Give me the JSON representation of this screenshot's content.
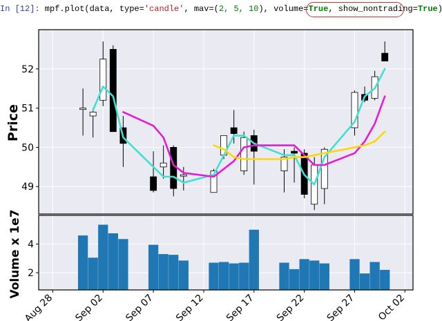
{
  "code": {
    "prompt": "In [12]:",
    "call_start": " mpf.plot(data, type=",
    "type_value": "'candle'",
    "mav_label": ", mav=(",
    "mav_values": "2, 5, 10",
    "volume_label": "), volume=",
    "volume_value": "True",
    "sep": ", ",
    "nontrading_label": "show_nontrading=",
    "nontrading_value": "True",
    "call_end": ")"
  },
  "chart_data": {
    "type": "candlestick",
    "xlabel": "",
    "x_tick_labels": [
      "Aug 28",
      "Sep 02",
      "Sep 07",
      "Sep 12",
      "Sep 17",
      "Sep 22",
      "Sep 27",
      "Oct 02"
    ],
    "x_tick_days": [
      0,
      5,
      10,
      15,
      20,
      25,
      30,
      35
    ],
    "xlim_days": [
      -1.4,
      35.8
    ],
    "price_panel": {
      "ylabel": "Price",
      "ylim": [
        48.3,
        53.0
      ],
      "yticks": [
        49,
        50,
        51,
        52
      ],
      "candles": [
        {
          "day": 3,
          "open": 50.97,
          "high": 51.5,
          "low": 50.3,
          "close": 51.0
        },
        {
          "day": 4,
          "open": 50.8,
          "high": 51.0,
          "low": 50.25,
          "close": 50.9
        },
        {
          "day": 5,
          "open": 51.2,
          "high": 52.7,
          "low": 51.05,
          "close": 52.25
        },
        {
          "day": 6,
          "open": 52.5,
          "high": 52.6,
          "low": 50.4,
          "close": 50.4
        },
        {
          "day": 7,
          "open": 50.5,
          "high": 50.8,
          "low": 49.5,
          "close": 50.1
        },
        {
          "day": 10,
          "open": 49.25,
          "high": 49.9,
          "low": 48.85,
          "close": 48.9
        },
        {
          "day": 11,
          "open": 49.5,
          "high": 50.05,
          "low": 49.2,
          "close": 49.6
        },
        {
          "day": 12,
          "open": 50.0,
          "high": 50.05,
          "low": 48.75,
          "close": 48.95
        },
        {
          "day": 13,
          "open": 49.3,
          "high": 49.5,
          "low": 48.9,
          "close": 49.3
        },
        {
          "day": 16,
          "open": 48.85,
          "high": 49.45,
          "low": 48.85,
          "close": 49.4
        },
        {
          "day": 17,
          "open": 49.8,
          "high": 50.3,
          "low": 49.7,
          "close": 50.3
        },
        {
          "day": 18,
          "open": 50.5,
          "high": 50.95,
          "low": 50.1,
          "close": 50.35
        },
        {
          "day": 19,
          "open": 49.4,
          "high": 50.4,
          "low": 49.3,
          "close": 50.25
        },
        {
          "day": 20,
          "open": 50.3,
          "high": 50.45,
          "low": 49.05,
          "close": 49.9
        },
        {
          "day": 23,
          "open": 49.4,
          "high": 49.95,
          "low": 48.85,
          "close": 49.75
        },
        {
          "day": 24,
          "open": 49.9,
          "high": 50.0,
          "low": 49.1,
          "close": 49.85
        },
        {
          "day": 25,
          "open": 49.85,
          "high": 49.95,
          "low": 48.7,
          "close": 48.8
        },
        {
          "day": 26,
          "open": 48.55,
          "high": 49.75,
          "low": 48.4,
          "close": 49.55
        },
        {
          "day": 27,
          "open": 48.95,
          "high": 50.0,
          "low": 48.55,
          "close": 49.95
        },
        {
          "day": 30,
          "open": 50.5,
          "high": 51.45,
          "low": 50.3,
          "close": 51.4
        },
        {
          "day": 31,
          "open": 51.35,
          "high": 51.55,
          "low": 51.15,
          "close": 51.2
        },
        {
          "day": 32,
          "open": 51.25,
          "high": 51.95,
          "low": 51.2,
          "close": 51.8
        },
        {
          "day": 33,
          "open": 52.4,
          "high": 52.7,
          "low": 52.2,
          "close": 52.2
        }
      ],
      "moving_averages": [
        {
          "name": "mav 2",
          "color": "#40e0d0",
          "points": [
            [
              4,
              50.95
            ],
            [
              5,
              51.55
            ],
            [
              6,
              51.3
            ],
            [
              7,
              50.25
            ],
            [
              10,
              49.5
            ],
            [
              11,
              49.25
            ],
            [
              12,
              49.25
            ],
            [
              13,
              49.1
            ],
            [
              16,
              49.3
            ],
            [
              17,
              49.8
            ],
            [
              18,
              50.3
            ],
            [
              19,
              50.3
            ],
            [
              20,
              50.1
            ],
            [
              23,
              49.8
            ],
            [
              24,
              49.8
            ],
            [
              25,
              49.3
            ],
            [
              26,
              49.05
            ],
            [
              27,
              49.75
            ],
            [
              30,
              50.65
            ],
            [
              31,
              51.3
            ],
            [
              32,
              51.5
            ],
            [
              33,
              52.0
            ]
          ]
        },
        {
          "name": "mav 5",
          "color": "#e619d9",
          "points": [
            [
              7,
              50.9
            ],
            [
              10,
              50.55
            ],
            [
              11,
              50.25
            ],
            [
              12,
              49.55
            ],
            [
              13,
              49.35
            ],
            [
              16,
              49.25
            ],
            [
              17,
              49.45
            ],
            [
              18,
              49.65
            ],
            [
              19,
              50.0
            ],
            [
              20,
              50.05
            ],
            [
              23,
              50.05
            ],
            [
              24,
              50.05
            ],
            [
              25,
              49.8
            ],
            [
              26,
              49.55
            ],
            [
              27,
              49.55
            ],
            [
              30,
              49.85
            ],
            [
              31,
              50.15
            ],
            [
              32,
              50.6
            ],
            [
              33,
              51.3
            ]
          ]
        },
        {
          "name": "mav 10",
          "color": "#ffd700",
          "points": [
            [
              16,
              50.05
            ],
            [
              17,
              49.95
            ],
            [
              18,
              49.75
            ],
            [
              19,
              49.7
            ],
            [
              20,
              49.7
            ],
            [
              23,
              49.7
            ],
            [
              24,
              49.75
            ],
            [
              25,
              49.75
            ],
            [
              26,
              49.8
            ],
            [
              27,
              49.85
            ],
            [
              30,
              50.0
            ],
            [
              31,
              50.05
            ],
            [
              32,
              50.15
            ],
            [
              33,
              50.4
            ]
          ]
        }
      ]
    },
    "volume_panel": {
      "ylabel": "Volume x 1e7",
      "ylim": [
        0.8,
        6.0
      ],
      "yticks": [
        2,
        4
      ],
      "bar_color": "#1f77b4",
      "bars": [
        {
          "day": 3,
          "value": 4.6
        },
        {
          "day": 4,
          "value": 3.05
        },
        {
          "day": 5,
          "value": 5.35
        },
        {
          "day": 6,
          "value": 4.75
        },
        {
          "day": 7,
          "value": 4.35
        },
        {
          "day": 10,
          "value": 3.95
        },
        {
          "day": 11,
          "value": 3.3
        },
        {
          "day": 12,
          "value": 3.25
        },
        {
          "day": 13,
          "value": 2.85
        },
        {
          "day": 16,
          "value": 2.7
        },
        {
          "day": 17,
          "value": 2.75
        },
        {
          "day": 18,
          "value": 2.65
        },
        {
          "day": 19,
          "value": 2.7
        },
        {
          "day": 20,
          "value": 5.0
        },
        {
          "day": 23,
          "value": 2.7
        },
        {
          "day": 24,
          "value": 2.25
        },
        {
          "day": 25,
          "value": 2.95
        },
        {
          "day": 26,
          "value": 2.85
        },
        {
          "day": 27,
          "value": 2.65
        },
        {
          "day": 30,
          "value": 2.95
        },
        {
          "day": 31,
          "value": 1.95
        },
        {
          "day": 32,
          "value": 2.75
        },
        {
          "day": 33,
          "value": 2.2
        }
      ]
    },
    "candle_colors": {
      "up": "#ffffff",
      "down": "#000000",
      "edge": "#000000"
    },
    "panel_background": "#eaeaf2",
    "grid": true
  }
}
